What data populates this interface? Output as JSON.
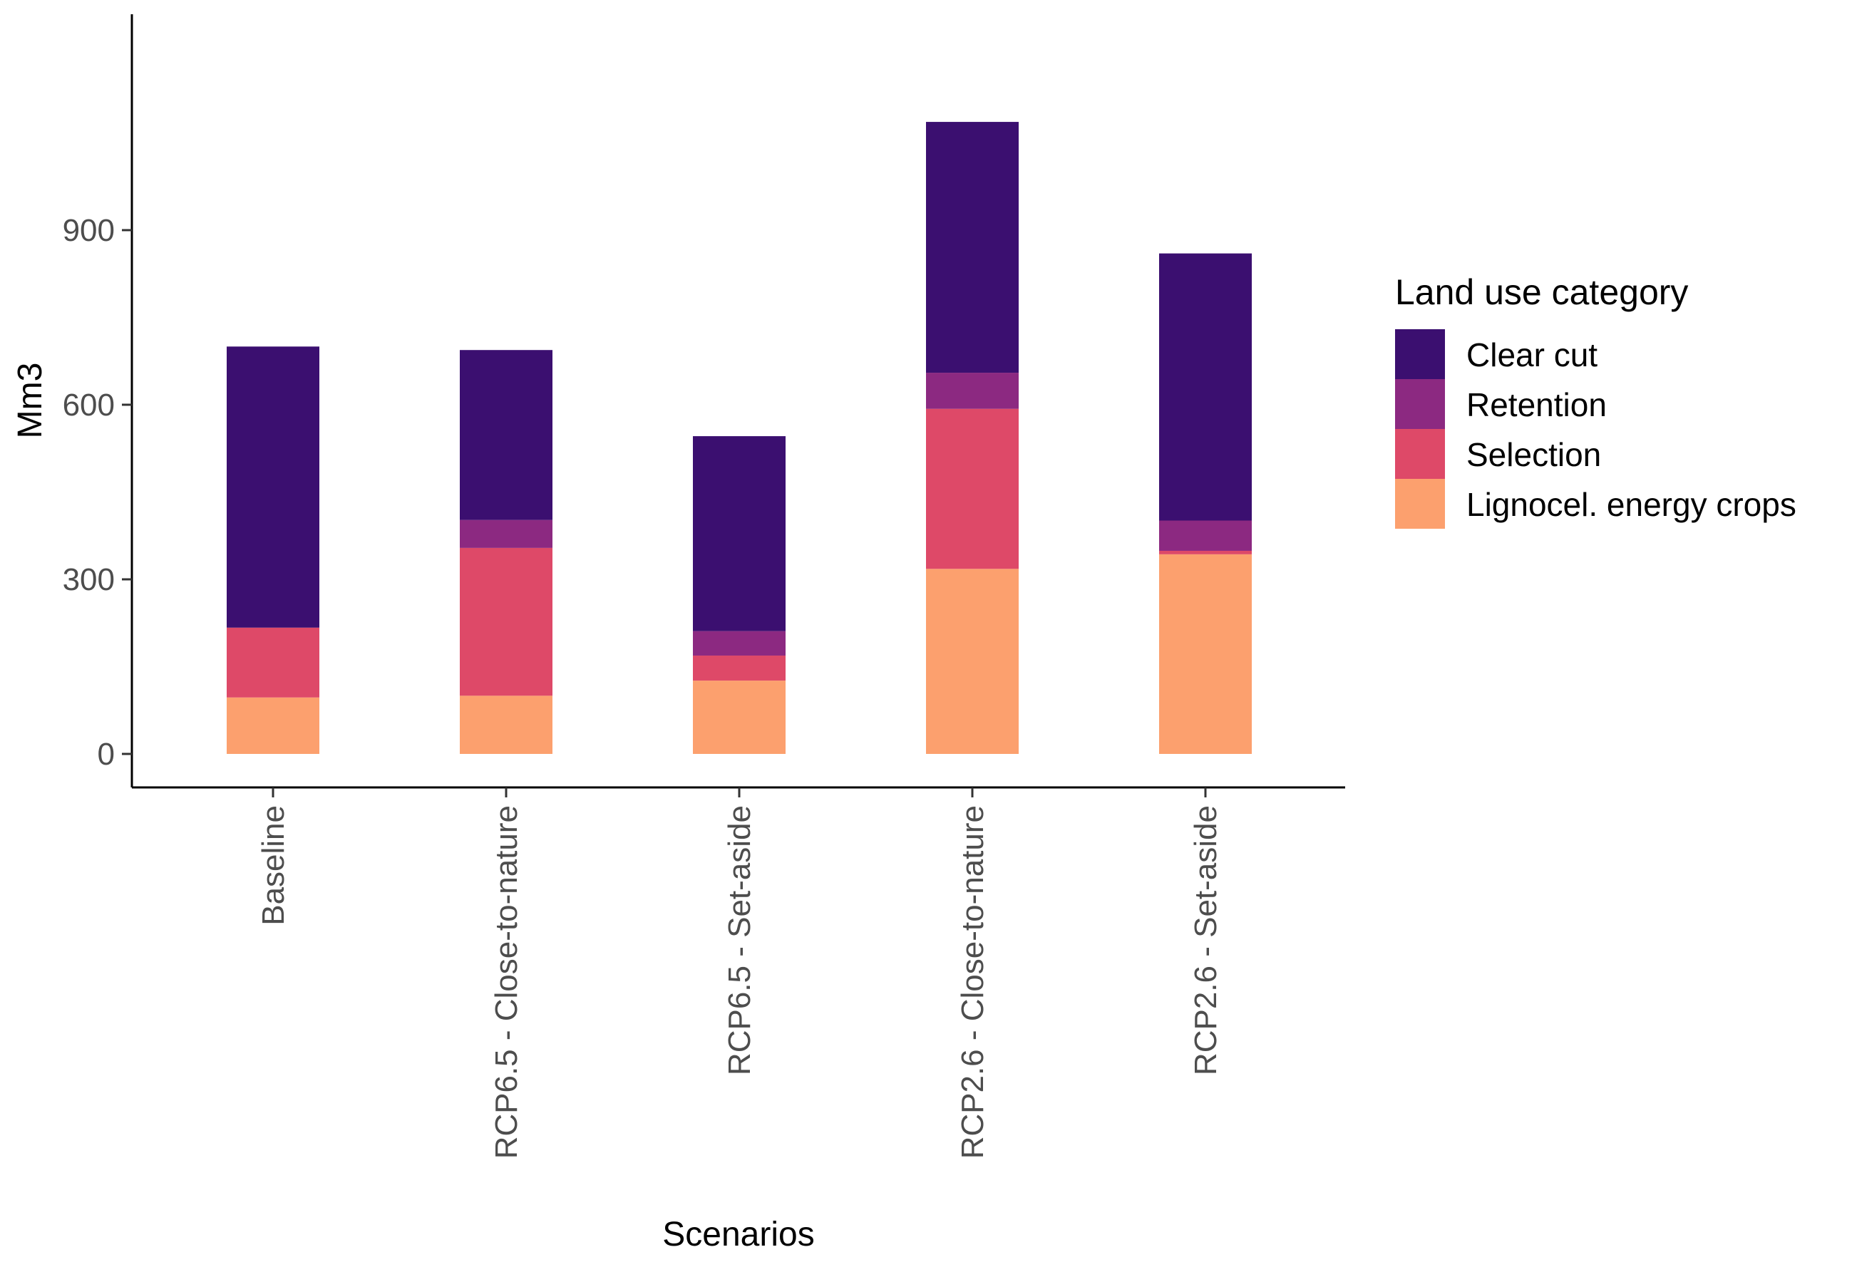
{
  "chart_data": {
    "type": "bar",
    "stacked": true,
    "categories": [
      "Baseline",
      "RCP6.5 - Close-to-nature",
      "RCP6.5 - Set-aside",
      "RCP2.6 - Close-to-nature",
      "RCP2.6 - Set-aside"
    ],
    "series": [
      {
        "name": "Lignocel. energy crops",
        "color": "#FCA06E",
        "values": [
          97,
          100,
          126,
          318,
          343
        ]
      },
      {
        "name": "Selection",
        "color": "#DE4968",
        "values": [
          120,
          254,
          43,
          275,
          6
        ]
      },
      {
        "name": "Retention",
        "color": "#8C2981",
        "values": [
          0,
          48,
          42,
          62,
          52
        ]
      },
      {
        "name": "Clear cut",
        "color": "#3B0F70",
        "values": [
          483,
          292,
          335,
          431,
          459
        ]
      }
    ],
    "xlabel": "Scenarios",
    "ylabel": "Mm3",
    "yticks": [
      0,
      300,
      600,
      900
    ],
    "ylim": [
      -50,
      1135
    ],
    "legend": {
      "title": "Land use category",
      "position": "right",
      "order": [
        "Clear cut",
        "Retention",
        "Selection",
        "Lignocel. energy crops"
      ]
    },
    "grid": false
  }
}
